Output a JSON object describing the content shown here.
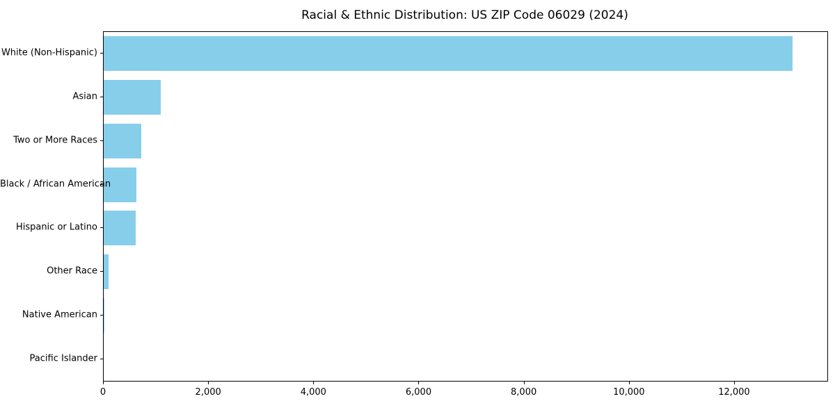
{
  "chart_data": {
    "type": "bar",
    "orientation": "horizontal",
    "title": "Racial & Ethnic Distribution: US ZIP Code 06029 (2024)",
    "categories": [
      "White (Non-Hispanic)",
      "Asian",
      "Two or More Races",
      "Black / African American",
      "Hispanic or Latino",
      "Other Race",
      "Native American",
      "Pacific Islander"
    ],
    "values": [
      13100,
      1090,
      720,
      620,
      610,
      90,
      10,
      0
    ],
    "x_ticks": [
      0,
      2000,
      4000,
      6000,
      8000,
      10000,
      12000
    ],
    "xlim": [
      0,
      13760
    ],
    "xlabel": "",
    "ylabel": "",
    "bar_color": "#87CEEB",
    "axis_color": "#000000",
    "grid": false,
    "legend": false
  }
}
